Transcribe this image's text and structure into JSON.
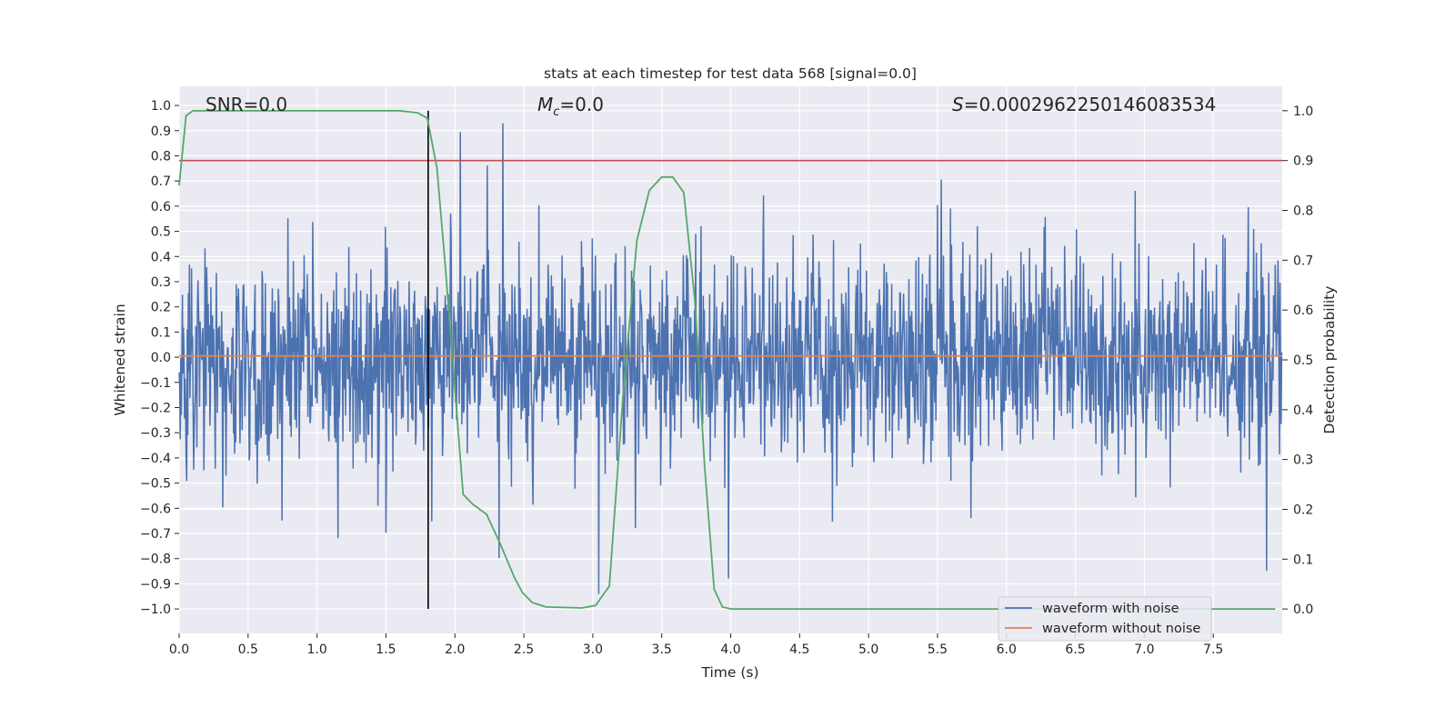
{
  "chart_data": {
    "type": "line",
    "title": "stats at each timestep for test data 568 [signal=0.0]",
    "xlabel": "Time (s)",
    "ylabel": "Whitened strain",
    "ylabel_right": "Detection probability",
    "xlim": [
      0,
      8
    ],
    "ylim": [
      -1.097,
      1.076
    ],
    "ylim_right": [
      -0.049,
      1.049
    ],
    "x_ticks": [
      "0.0",
      "0.5",
      "1.0",
      "1.5",
      "2.0",
      "2.5",
      "3.0",
      "3.5",
      "4.0",
      "4.5",
      "5.0",
      "5.5",
      "6.0",
      "6.5",
      "7.0",
      "7.5"
    ],
    "y_ticks": [
      "1.0",
      "0.9",
      "0.8",
      "0.7",
      "0.6",
      "0.5",
      "0.4",
      "0.3",
      "0.2",
      "0.1",
      "0.0",
      "−0.1",
      "−0.2",
      "−0.3",
      "−0.4",
      "−0.5",
      "−0.6",
      "−0.7",
      "−0.8",
      "−0.9",
      "−1.0"
    ],
    "y_ticks_right": [
      "1.0",
      "0.9",
      "0.8",
      "0.7",
      "0.6",
      "0.5",
      "0.4",
      "0.3",
      "0.2",
      "0.1",
      "0.0"
    ],
    "grid": true,
    "annotations": {
      "snr": "SNR=0.0",
      "mc_symbol": "M",
      "mc_sub": "c",
      "mc_value": "=0.0",
      "s_symbol": "S",
      "s_value": "=0.0002962250146083534"
    },
    "legend": {
      "placement": "lower-right",
      "entries": [
        "waveform with noise",
        "waveform without noise"
      ]
    },
    "series": [
      {
        "name": "waveform with noise",
        "color": "#4c72b0",
        "axis": "left",
        "n_samples": 2048,
        "std": 0.2,
        "min": -0.99,
        "max": 0.98
      },
      {
        "name": "waveform without noise",
        "color": "#dd8452",
        "axis": "left",
        "x": [
          0,
          8
        ],
        "y": [
          0.005,
          0.005
        ]
      },
      {
        "name": "detection probability",
        "color": "#55a868",
        "axis": "right",
        "x": [
          0,
          0.05,
          0.1,
          0.5,
          1.0,
          1.6,
          1.73,
          1.8,
          1.87,
          1.93,
          2.0,
          2.06,
          2.13,
          2.23,
          2.33,
          2.43,
          2.49,
          2.56,
          2.66,
          2.92,
          3.02,
          3.12,
          3.22,
          3.32,
          3.41,
          3.5,
          3.58,
          3.66,
          3.74,
          3.81,
          3.88,
          3.94,
          4.0,
          5.0,
          6.0,
          7.0,
          7.95
        ],
        "y": [
          0.85,
          0.99,
          1.0,
          1.0,
          1.0,
          1.0,
          0.996,
          0.985,
          0.885,
          0.69,
          0.44,
          0.23,
          0.21,
          0.19,
          0.13,
          0.064,
          0.033,
          0.013,
          0.004,
          0.002,
          0.007,
          0.046,
          0.43,
          0.74,
          0.84,
          0.867,
          0.867,
          0.836,
          0.62,
          0.29,
          0.04,
          0.004,
          0.0,
          0.0,
          0.0,
          0.0,
          0.0
        ]
      },
      {
        "name": "threshold",
        "color": "#c44e52",
        "axis": "right",
        "y": 0.9
      },
      {
        "name": "detection time",
        "color": "#000000",
        "axis": "right",
        "x": 1.806,
        "y": [
          0,
          1
        ]
      }
    ]
  }
}
